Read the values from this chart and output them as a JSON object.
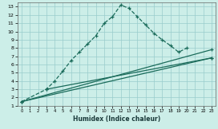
{
  "xlabel": "Humidex (Indice chaleur)",
  "bg_color": "#cceee8",
  "grid_color": "#99cccc",
  "line_color": "#1a6b5a",
  "xlim": [
    -0.5,
    23.5
  ],
  "ylim": [
    1,
    13.5
  ],
  "xticks": [
    0,
    1,
    2,
    3,
    4,
    5,
    6,
    7,
    8,
    9,
    10,
    11,
    12,
    13,
    14,
    15,
    16,
    17,
    18,
    19,
    20,
    21,
    22,
    23
  ],
  "yticks": [
    1,
    2,
    3,
    4,
    5,
    6,
    7,
    8,
    9,
    10,
    11,
    12,
    13
  ],
  "main_curve_x": [
    0,
    3,
    4,
    5,
    6,
    7,
    8,
    9,
    10,
    11,
    12,
    13,
    14,
    15,
    16,
    17,
    18,
    19,
    20
  ],
  "main_curve_y": [
    1.5,
    3.0,
    4.0,
    5.2,
    6.5,
    7.5,
    8.5,
    9.5,
    11.0,
    11.8,
    13.2,
    12.8,
    11.8,
    10.8,
    9.8,
    9.0,
    8.3,
    7.5,
    8.0
  ],
  "line1_x": [
    0,
    23
  ],
  "line1_y": [
    1.5,
    7.8
  ],
  "line2_x": [
    0,
    23
  ],
  "line2_y": [
    1.5,
    6.8
  ],
  "line3_x": [
    3,
    23
  ],
  "line3_y": [
    3.0,
    6.8
  ],
  "xlabel_fontsize": 5.5,
  "tick_fontsize": 4.5
}
